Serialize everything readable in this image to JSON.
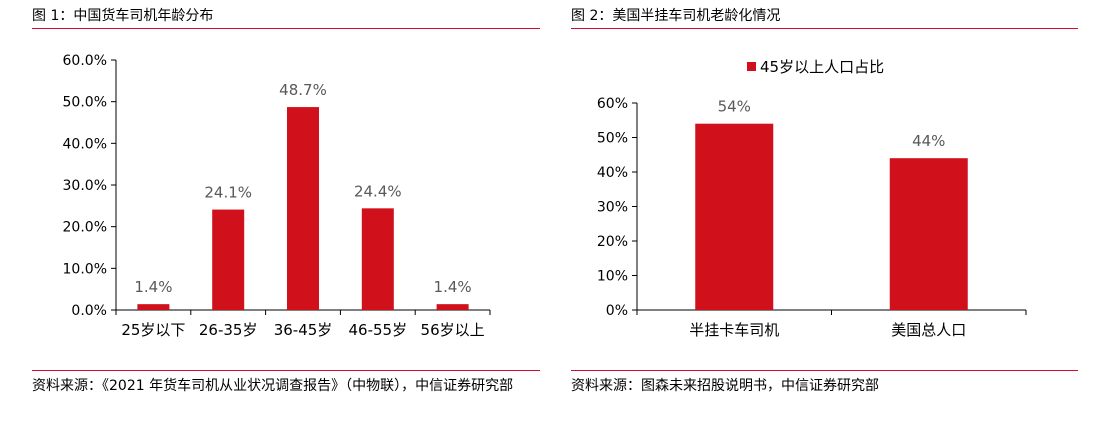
{
  "colors": {
    "bar": "#d0101b",
    "rule": "#c8102e",
    "axis": "#000000",
    "label": "#595959"
  },
  "left_panel": {
    "title": "图 1：中国货车司机年龄分布",
    "source": "资料来源：《2021 年货车司机从业状况调查报告》（中物联），中信证券研究部"
  },
  "right_panel": {
    "title": "图 2：美国半挂车司机老龄化情况",
    "source": "资料来源：图森未来招股说明书，中信证券研究部"
  },
  "chart_data": [
    {
      "type": "bar",
      "title": "",
      "xlabel": "",
      "ylabel": "",
      "categories": [
        "25岁以下",
        "26-35岁",
        "36-45岁",
        "46-55岁",
        "56岁以上"
      ],
      "values": [
        1.4,
        24.1,
        48.7,
        24.4,
        1.4
      ],
      "data_labels": [
        "1.4%",
        "24.1%",
        "48.7%",
        "24.4%",
        "1.4%"
      ],
      "y_ticks": [
        0,
        10,
        20,
        30,
        40,
        50,
        60
      ],
      "y_tick_labels": [
        "0.0%",
        "10.0%",
        "20.0%",
        "30.0%",
        "40.0%",
        "50.0%",
        "60.0%"
      ],
      "ylim": [
        0,
        60
      ],
      "grid": false,
      "legend": null
    },
    {
      "type": "bar",
      "title": "",
      "xlabel": "",
      "ylabel": "",
      "categories": [
        "半挂卡车司机",
        "美国总人口"
      ],
      "series": [
        {
          "name": "45岁以上人口占比",
          "values": [
            54,
            44
          ]
        }
      ],
      "data_labels": [
        "54%",
        "44%"
      ],
      "y_ticks": [
        0,
        10,
        20,
        30,
        40,
        50,
        60
      ],
      "y_tick_labels": [
        "0%",
        "10%",
        "20%",
        "30%",
        "40%",
        "50%",
        "60%"
      ],
      "ylim": [
        0,
        60
      ],
      "grid": false,
      "legend": "top-center"
    }
  ]
}
